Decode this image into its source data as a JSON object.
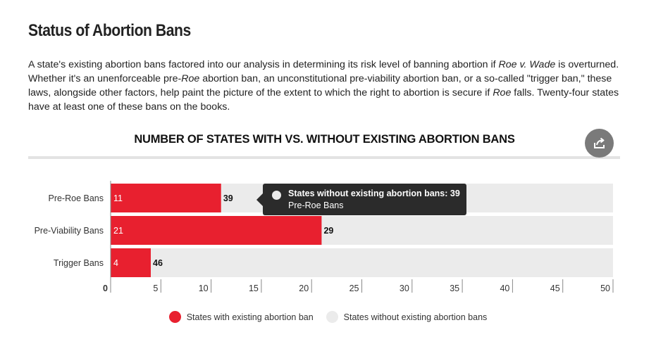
{
  "page": {
    "title": "Status of Abortion Bans",
    "intro": {
      "p1": "A state's existing abortion bans factored into our analysis in determining its risk level of banning abortion if ",
      "p1_italic": "Roe v. Wade",
      "p2": " is overturned. Whether it's an unenforceable pre-",
      "p2_italic": "Roe",
      "p3": " abortion ban, an unconstitutional pre-viability abortion ban, or a so-called \"trigger ban,\" these laws, alongside other factors, help paint the picture of the extent to which the right to abortion is secure if ",
      "p3_italic": "Roe",
      "p4": " falls. Twenty-four states have at least one of these bans on the books."
    }
  },
  "share": {
    "icon": "share-icon"
  },
  "tooltip": {
    "series": "States without existing abortion bans",
    "value": "39",
    "category": "Pre-Roe Bans"
  },
  "chart_data": {
    "type": "bar",
    "orientation": "horizontal",
    "stacked": true,
    "title": "NUMBER OF STATES WITH VS. WITHOUT EXISTING ABORTION BANS",
    "categories": [
      "Pre-Roe Bans",
      "Pre-Viability Bans",
      "Trigger Bans"
    ],
    "series": [
      {
        "name": "States with existing abortion ban",
        "values": [
          11,
          21,
          4
        ],
        "color": "#e8202f"
      },
      {
        "name": "States without existing abortion bans",
        "values": [
          39,
          29,
          46
        ],
        "color": "#ebebeb"
      }
    ],
    "xlim": [
      0,
      50
    ],
    "ticks": [
      0,
      5,
      10,
      15,
      20,
      25,
      30,
      35,
      40,
      45,
      50
    ],
    "legend_position": "bottom",
    "grid": false
  }
}
